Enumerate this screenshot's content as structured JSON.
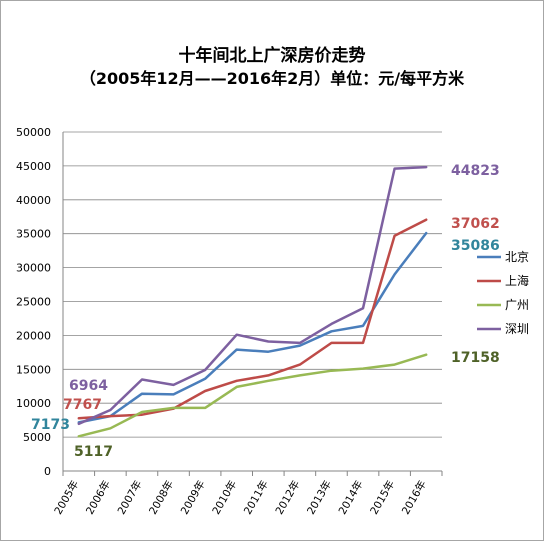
{
  "chart_data": {
    "type": "line",
    "title": "十年间北上广深房价走势",
    "subtitle": "（2005年12月——2016年2月）单位：元/每平方米",
    "xlabel": "",
    "ylabel": "",
    "ylim": [
      0,
      50000
    ],
    "y_ticks": [
      0,
      5000,
      10000,
      15000,
      20000,
      25000,
      30000,
      35000,
      40000,
      45000,
      50000
    ],
    "categories": [
      "2005年",
      "2006年",
      "2007年",
      "2008年",
      "2009年",
      "2010年",
      "2011年",
      "2012年",
      "2013年",
      "2014年",
      "2015年",
      "2016年"
    ],
    "legend_position": "right",
    "grid": true,
    "series": [
      {
        "name": "北京",
        "color": "#4a7ebb",
        "values": [
          7173,
          8100,
          11400,
          11300,
          13600,
          17900,
          17600,
          18500,
          20600,
          21400,
          29000,
          35086
        ]
      },
      {
        "name": "上海",
        "color": "#be4b48",
        "values": [
          7767,
          8100,
          8300,
          9200,
          11800,
          13300,
          14100,
          15700,
          18900,
          18900,
          34700,
          37062
        ]
      },
      {
        "name": "广州",
        "color": "#98b954",
        "values": [
          5117,
          6300,
          8700,
          9300,
          9300,
          12400,
          13300,
          14100,
          14800,
          15100,
          15700,
          17158
        ]
      },
      {
        "name": "深圳",
        "color": "#7d60a0",
        "values": [
          6964,
          9000,
          13500,
          12700,
          14900,
          20100,
          19100,
          18900,
          21700,
          24000,
          44600,
          44823
        ]
      }
    ],
    "data_labels": [
      {
        "text": "44823",
        "color": "#7d60a0"
      },
      {
        "text": "37062",
        "color": "#c0504d"
      },
      {
        "text": "35086",
        "color": "#31859c"
      },
      {
        "text": "17158",
        "color": "#4f6228"
      },
      {
        "text": "6964",
        "color": "#7d60a0"
      },
      {
        "text": "7767",
        "color": "#c0504d"
      },
      {
        "text": "7173",
        "color": "#31859c"
      },
      {
        "text": "5117",
        "color": "#4f6228"
      }
    ]
  }
}
